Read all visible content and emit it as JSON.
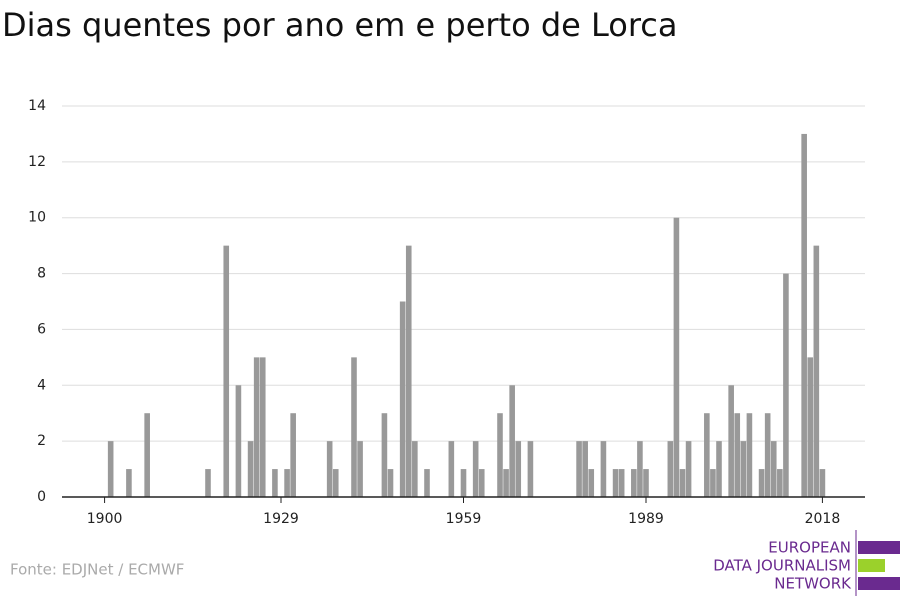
{
  "chart_data": {
    "type": "bar",
    "title": "Dias quentes por ano em e perto de Lorca",
    "source": "Fonte: EDJNet / ECMWF",
    "logo": [
      "EUROPEAN",
      "DATA JOURNALISM",
      "NETWORK"
    ],
    "color": "#999999",
    "x": [
      1901,
      1904,
      1907,
      1917,
      1920,
      1922,
      1924,
      1925,
      1926,
      1928,
      1930,
      1931,
      1937,
      1938,
      1941,
      1942,
      1946,
      1947,
      1949,
      1950,
      1951,
      1953,
      1957,
      1959,
      1961,
      1962,
      1965,
      1966,
      1967,
      1968,
      1970,
      1978,
      1979,
      1980,
      1982,
      1984,
      1985,
      1987,
      1988,
      1989,
      1993,
      1994,
      1995,
      1996,
      1999,
      2000,
      2001,
      2003,
      2004,
      2005,
      2006,
      2008,
      2009,
      2010,
      2011,
      2012,
      2015,
      2016,
      2017,
      2018
    ],
    "values": [
      2,
      1,
      3,
      1,
      9,
      4,
      2,
      5,
      5,
      1,
      1,
      3,
      2,
      1,
      5,
      2,
      3,
      1,
      7,
      9,
      2,
      1,
      2,
      1,
      2,
      1,
      3,
      1,
      4,
      2,
      2,
      2,
      2,
      1,
      2,
      1,
      1,
      1,
      2,
      1,
      2,
      10,
      1,
      2,
      3,
      1,
      2,
      4,
      3,
      2,
      3,
      1,
      3,
      2,
      1,
      8,
      13,
      5,
      9,
      1
    ],
    "xlim": [
      1893,
      2025
    ],
    "xticks": [
      1900,
      1929,
      1959,
      1989,
      2018
    ],
    "ylim": [
      0,
      14
    ],
    "yticks": [
      0,
      2,
      4,
      6,
      8,
      10,
      12,
      14
    ],
    "grid": true
  }
}
